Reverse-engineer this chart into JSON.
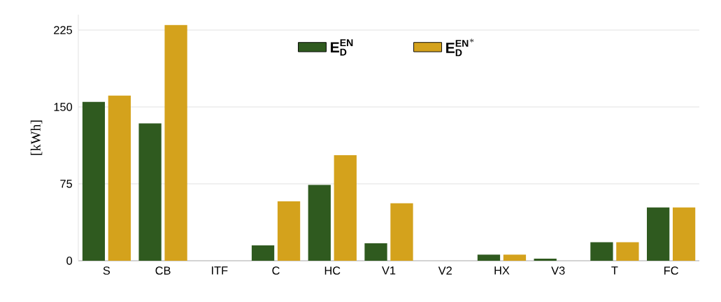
{
  "chart_data": {
    "type": "bar",
    "ylabel": "[kWh]",
    "categories": [
      "S",
      "CB",
      "ITF",
      "C",
      "HC",
      "V1",
      "V2",
      "HX",
      "V3",
      "T",
      "FC"
    ],
    "series": [
      {
        "name": "\\mathbf{E_{D}^{EN}}",
        "color": "#2f5a1f",
        "values": [
          155,
          134,
          0,
          15,
          74,
          17,
          0,
          6,
          2,
          18,
          52
        ]
      },
      {
        "name": "\\mathbf{E_{D}^{EN^{*}}}",
        "color": "#d4a21c",
        "values": [
          161,
          230,
          0,
          58,
          103,
          56,
          0,
          6,
          0,
          18,
          52
        ]
      }
    ],
    "ylim": [
      0,
      240
    ],
    "yticks": [
      0,
      75,
      150,
      225
    ],
    "grid": "y",
    "legend": "top"
  }
}
